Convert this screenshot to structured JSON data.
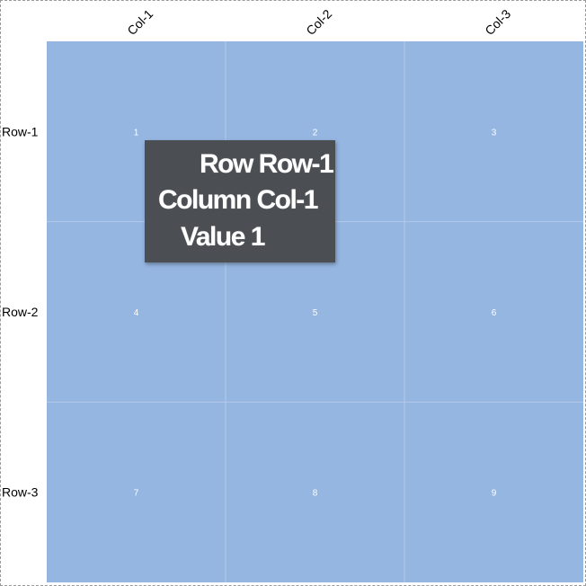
{
  "chart_data": {
    "type": "heatmap",
    "rows": [
      "Row-1",
      "Row-2",
      "Row-3"
    ],
    "columns": [
      "Col-1",
      "Col-2",
      "Col-3"
    ],
    "values": [
      [
        1,
        2,
        3
      ],
      [
        4,
        5,
        6
      ],
      [
        7,
        8,
        9
      ]
    ],
    "cell_color": "#95b6e0",
    "grid_line_color": "#b3c9e9",
    "label_color": "#ffffff"
  },
  "tooltip": {
    "row_line": "Row Row-1",
    "column_line": "Column Col-1",
    "value_line": "Value 1",
    "background": "#4b4e53"
  }
}
